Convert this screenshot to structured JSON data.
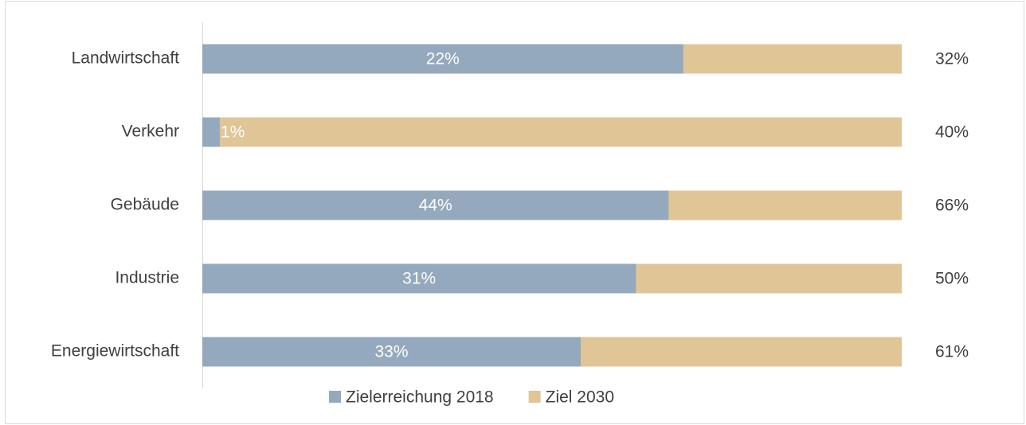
{
  "chart_data": {
    "type": "bar",
    "categories": [
      "Landwirtschaft",
      "Verkehr",
      "Gebäude",
      "Industrie",
      "Energiewirtschaft"
    ],
    "series": [
      {
        "name": "Zielerreichung 2018",
        "color": "#94a9bd",
        "values": [
          22,
          1,
          44,
          31,
          33
        ],
        "value_labels": [
          "22%",
          "1%",
          "44%",
          "31%",
          "33%"
        ]
      },
      {
        "name": "Ziel 2030",
        "color": "#e0c596",
        "values": [
          32,
          40,
          66,
          50,
          61
        ],
        "value_labels": [
          "32%",
          "40%",
          "66%",
          "50%",
          "61%"
        ]
      }
    ],
    "legend": "bottom"
  }
}
